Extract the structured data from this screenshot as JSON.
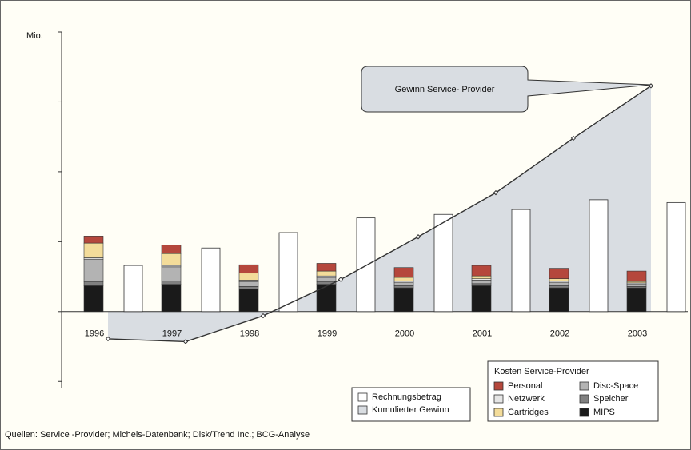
{
  "chart_data": {
    "type": "bar",
    "y_label": "Mio.",
    "ylim": [
      -1.1,
      4
    ],
    "yticks": [
      -1,
      0,
      1,
      2,
      3,
      4
    ],
    "categories": [
      "1996",
      "1997",
      "1998",
      "1999",
      "2000",
      "2001",
      "2002",
      "2003"
    ],
    "series": [
      {
        "name": "MIPS",
        "type": "stacked_bar",
        "color": "#1a1a1a",
        "values": [
          0.37,
          0.39,
          0.32,
          0.39,
          0.34,
          0.37,
          0.34,
          0.34
        ]
      },
      {
        "name": "Speicher",
        "type": "stacked_bar",
        "color": "#808080",
        "values": [
          0.06,
          0.05,
          0.04,
          0.04,
          0.03,
          0.03,
          0.03,
          0.02
        ]
      },
      {
        "name": "Disc-Space",
        "type": "stacked_bar",
        "color": "#b3b3b3",
        "values": [
          0.32,
          0.2,
          0.07,
          0.06,
          0.05,
          0.05,
          0.05,
          0.03
        ]
      },
      {
        "name": "Netzwerk",
        "type": "stacked_bar",
        "color": "#e6e6e6",
        "values": [
          0.02,
          0.02,
          0.02,
          0.02,
          0.02,
          0.02,
          0.02,
          0.02
        ]
      },
      {
        "name": "Cartridges",
        "type": "stacked_bar",
        "color": "#f3dc9a",
        "values": [
          0.21,
          0.17,
          0.1,
          0.07,
          0.05,
          0.04,
          0.03,
          0.02
        ]
      },
      {
        "name": "Personal",
        "type": "stacked_bar",
        "color": "#b5473c",
        "values": [
          0.1,
          0.12,
          0.12,
          0.11,
          0.14,
          0.15,
          0.15,
          0.15
        ]
      },
      {
        "name": "Rechnungsbetrag",
        "type": "bar",
        "color": "#ffffff",
        "values": [
          0.66,
          0.91,
          1.13,
          1.34,
          1.39,
          1.46,
          1.6,
          1.56
        ]
      },
      {
        "name": "Kumulierter Gewinn",
        "type": "area",
        "color": "#d9dde2",
        "values": [
          -0.39,
          -0.43,
          -0.06,
          0.46,
          1.07,
          1.7,
          2.48,
          3.23
        ]
      }
    ],
    "legend_title": "Kosten Service-Provider",
    "annotation": "Gewinn Service- Provider",
    "source": "Quellen: Service -Provider; Michels-Datenbank; Disk/Trend Inc.; BCG-Analyse"
  }
}
